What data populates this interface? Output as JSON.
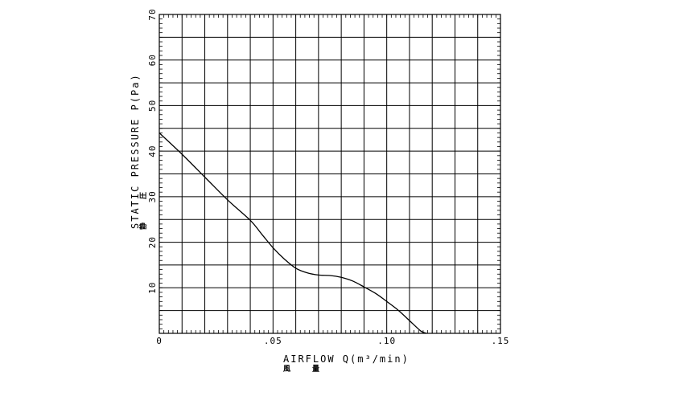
{
  "chart_data": {
    "type": "line",
    "xlabel": "AIRFLOW Q(m³/min)",
    "xlabel_kanji": [
      "風",
      "量"
    ],
    "ylabel": "STATIC PRESSURE P(Pa)",
    "ylabel_kanji": [
      "静",
      "圧"
    ],
    "xlim": [
      0,
      0.15
    ],
    "ylim": [
      0,
      70
    ],
    "x_ticks": [
      0,
      0.05,
      0.1,
      0.15
    ],
    "x_tick_labels": [
      "0",
      ".05",
      ".10",
      ".15"
    ],
    "y_ticks": [
      10,
      20,
      30,
      40,
      50,
      60,
      70
    ],
    "y_tick_labels": [
      "10",
      "20",
      "30",
      "40",
      "50",
      "60",
      "70"
    ],
    "grid": true,
    "grid_x_step": 0.01,
    "grid_y_step": 5,
    "series": [
      {
        "x": [
          0,
          0.01,
          0.02,
          0.03,
          0.04,
          0.045,
          0.05,
          0.055,
          0.06,
          0.065,
          0.07,
          0.075,
          0.08,
          0.085,
          0.09,
          0.095,
          0.1,
          0.105,
          0.11,
          0.115,
          0.1175
        ],
        "y": [
          44,
          39.3,
          34.3,
          29.3,
          24.8,
          21.8,
          18.8,
          16.3,
          14.3,
          13.3,
          12.8,
          12.7,
          12.3,
          11.5,
          10.2,
          8.8,
          7,
          5.1,
          2.8,
          0.5,
          0
        ]
      }
    ]
  }
}
